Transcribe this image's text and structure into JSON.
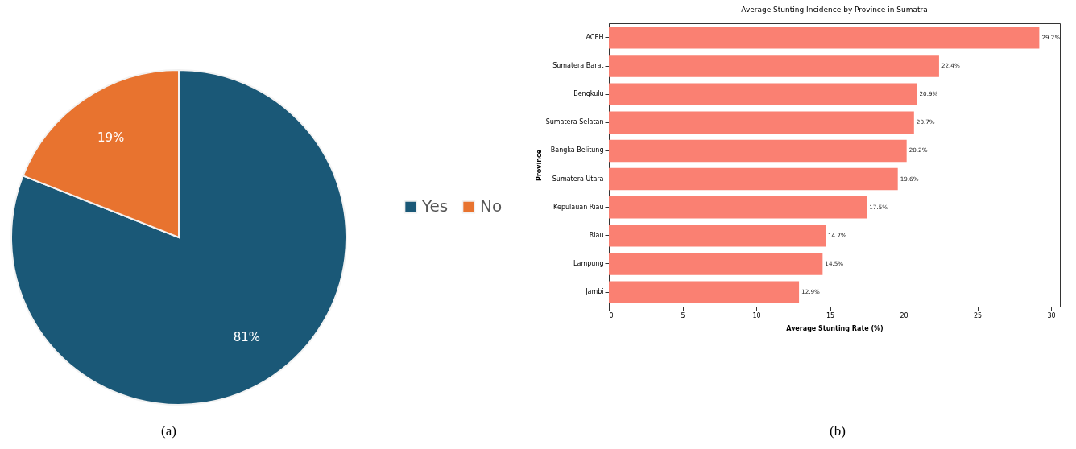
{
  "chart_data": [
    {
      "type": "pie",
      "categories": [
        "Yes",
        "No"
      ],
      "values": [
        81,
        19
      ],
      "colors": [
        "#1a5877",
        "#e8732f"
      ],
      "legend": "right",
      "value_labels": [
        "81%",
        "19%"
      ],
      "annotations": [
        "(a)"
      ]
    },
    {
      "type": "bar",
      "orientation": "horizontal",
      "title": "Average Stunting Incidence by Province in Sumatra",
      "xlabel": "Average Stunting Rate (%)",
      "ylabel": "Province",
      "categories": [
        "ACEH",
        "Sumatera Barat",
        "Bengkulu",
        "Sumatera Selatan",
        "Bangka Belitung",
        "Sumatera Utara",
        "Kepulauan Riau",
        "Riau",
        "Lampung",
        "Jambi"
      ],
      "values": [
        29.2,
        22.4,
        20.9,
        20.7,
        20.2,
        19.6,
        17.5,
        14.7,
        14.5,
        12.9
      ],
      "color": "#fa8072",
      "value_labels": [
        "29.2%",
        "22.4%",
        "20.9%",
        "20.7%",
        "20.2%",
        "19.6%",
        "17.5%",
        "14.7%",
        "14.5%",
        "12.9%"
      ],
      "xlim": [
        0,
        30.6
      ],
      "xticks": [
        0,
        5,
        10,
        15,
        20,
        25,
        30
      ],
      "grid": false,
      "annotations": [
        "(b)"
      ]
    }
  ]
}
